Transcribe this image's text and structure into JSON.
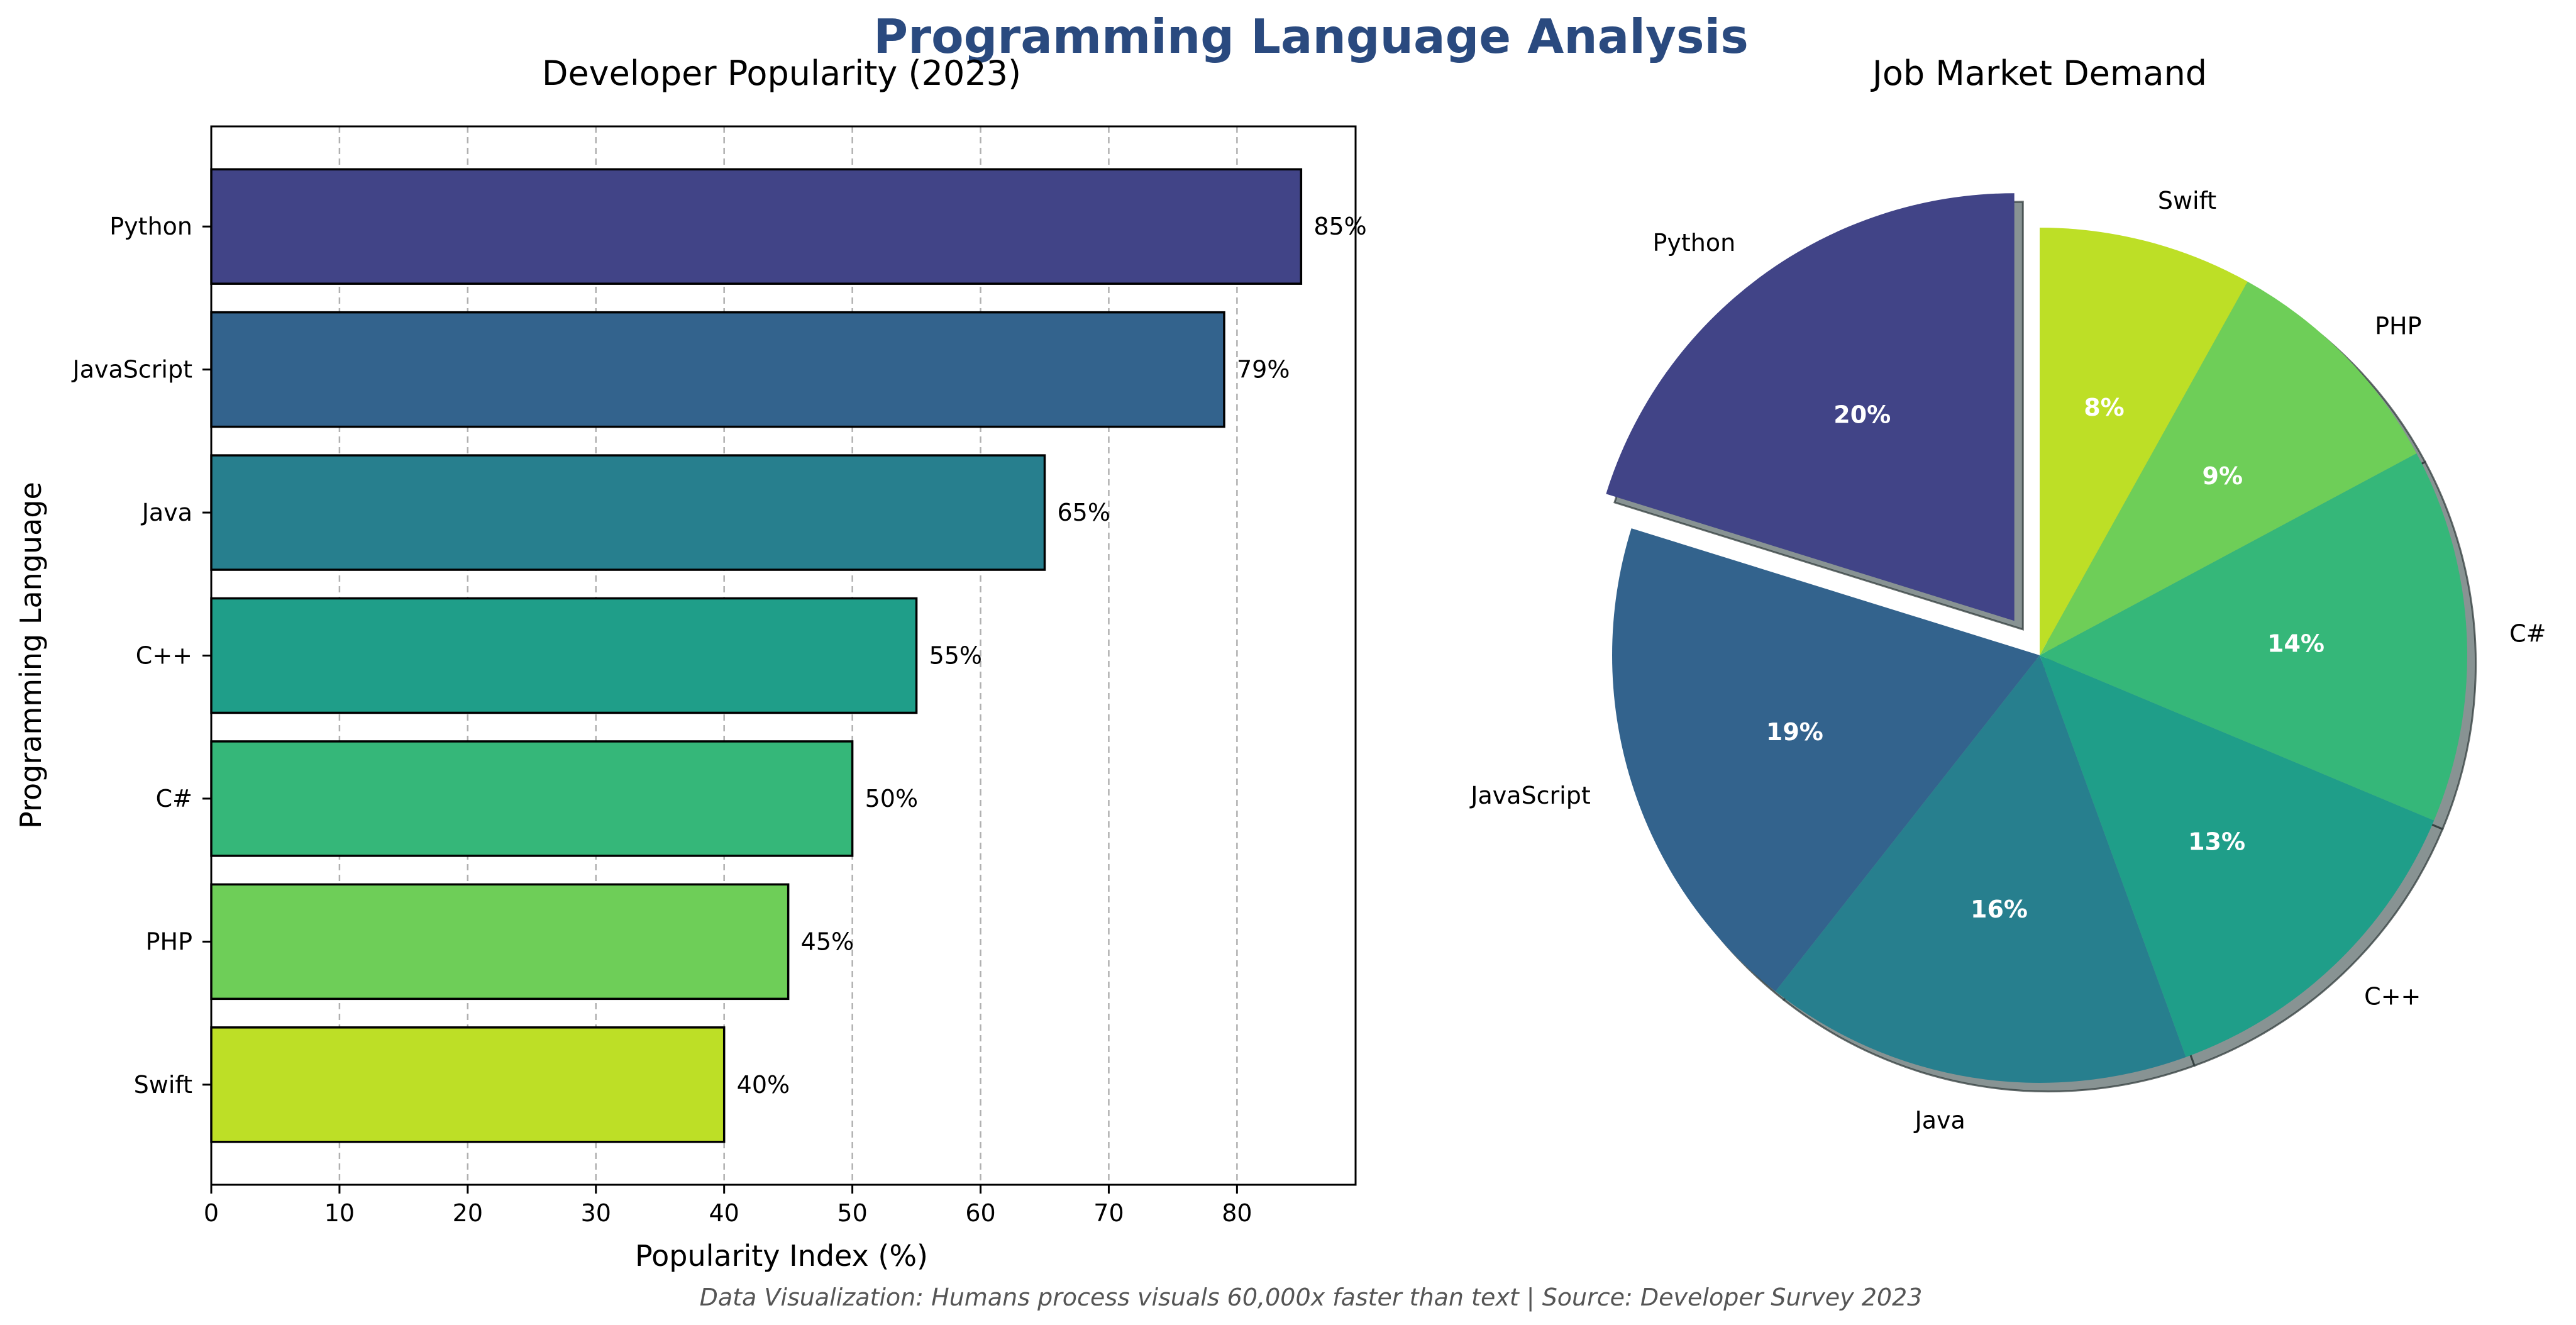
{
  "title": "Programming Language Analysis",
  "title_color": "#2a4a7f",
  "footnote": "Data Visualization: Humans process visuals 60,000x faster than text | Source: Developer Survey 2023",
  "chart_data": [
    {
      "type": "bar",
      "orientation": "horizontal",
      "title": "Developer Popularity (2023)",
      "xlabel": "Popularity Index (%)",
      "ylabel": "Programming Language",
      "categories": [
        "Python",
        "JavaScript",
        "Java",
        "C++",
        "C#",
        "PHP",
        "Swift"
      ],
      "values": [
        85,
        79,
        65,
        55,
        50,
        45,
        40
      ],
      "value_labels": [
        "85%",
        "79%",
        "65%",
        "55%",
        "50%",
        "45%",
        "40%"
      ],
      "colors": [
        "#414487",
        "#33638d",
        "#277f8e",
        "#1f9e89",
        "#35b779",
        "#6ece58",
        "#bddf26"
      ],
      "xlim": [
        0,
        89.25
      ],
      "xticks": [
        0,
        10,
        20,
        30,
        40,
        50,
        60,
        70,
        80
      ],
      "xtick_labels": [
        "0",
        "10",
        "20",
        "30",
        "40",
        "50",
        "60",
        "70",
        "80"
      ],
      "grid": "x dashed"
    },
    {
      "type": "pie",
      "title": "Job Market Demand",
      "labels": [
        "Python",
        "JavaScript",
        "Java",
        "C++",
        "C#",
        "PHP",
        "Swift"
      ],
      "values": [
        20,
        19,
        16,
        13,
        14,
        9,
        8
      ],
      "pct_labels": [
        "20%",
        "19%",
        "16%",
        "13%",
        "14%",
        "9%",
        "8%"
      ],
      "colors": [
        "#414487",
        "#33638d",
        "#277f8e",
        "#1f9e89",
        "#35b779",
        "#6ece58",
        "#bddf26"
      ],
      "exploded": [
        "Python"
      ],
      "start_angle": 90,
      "direction": "counterclockwise",
      "shadow": true
    }
  ]
}
